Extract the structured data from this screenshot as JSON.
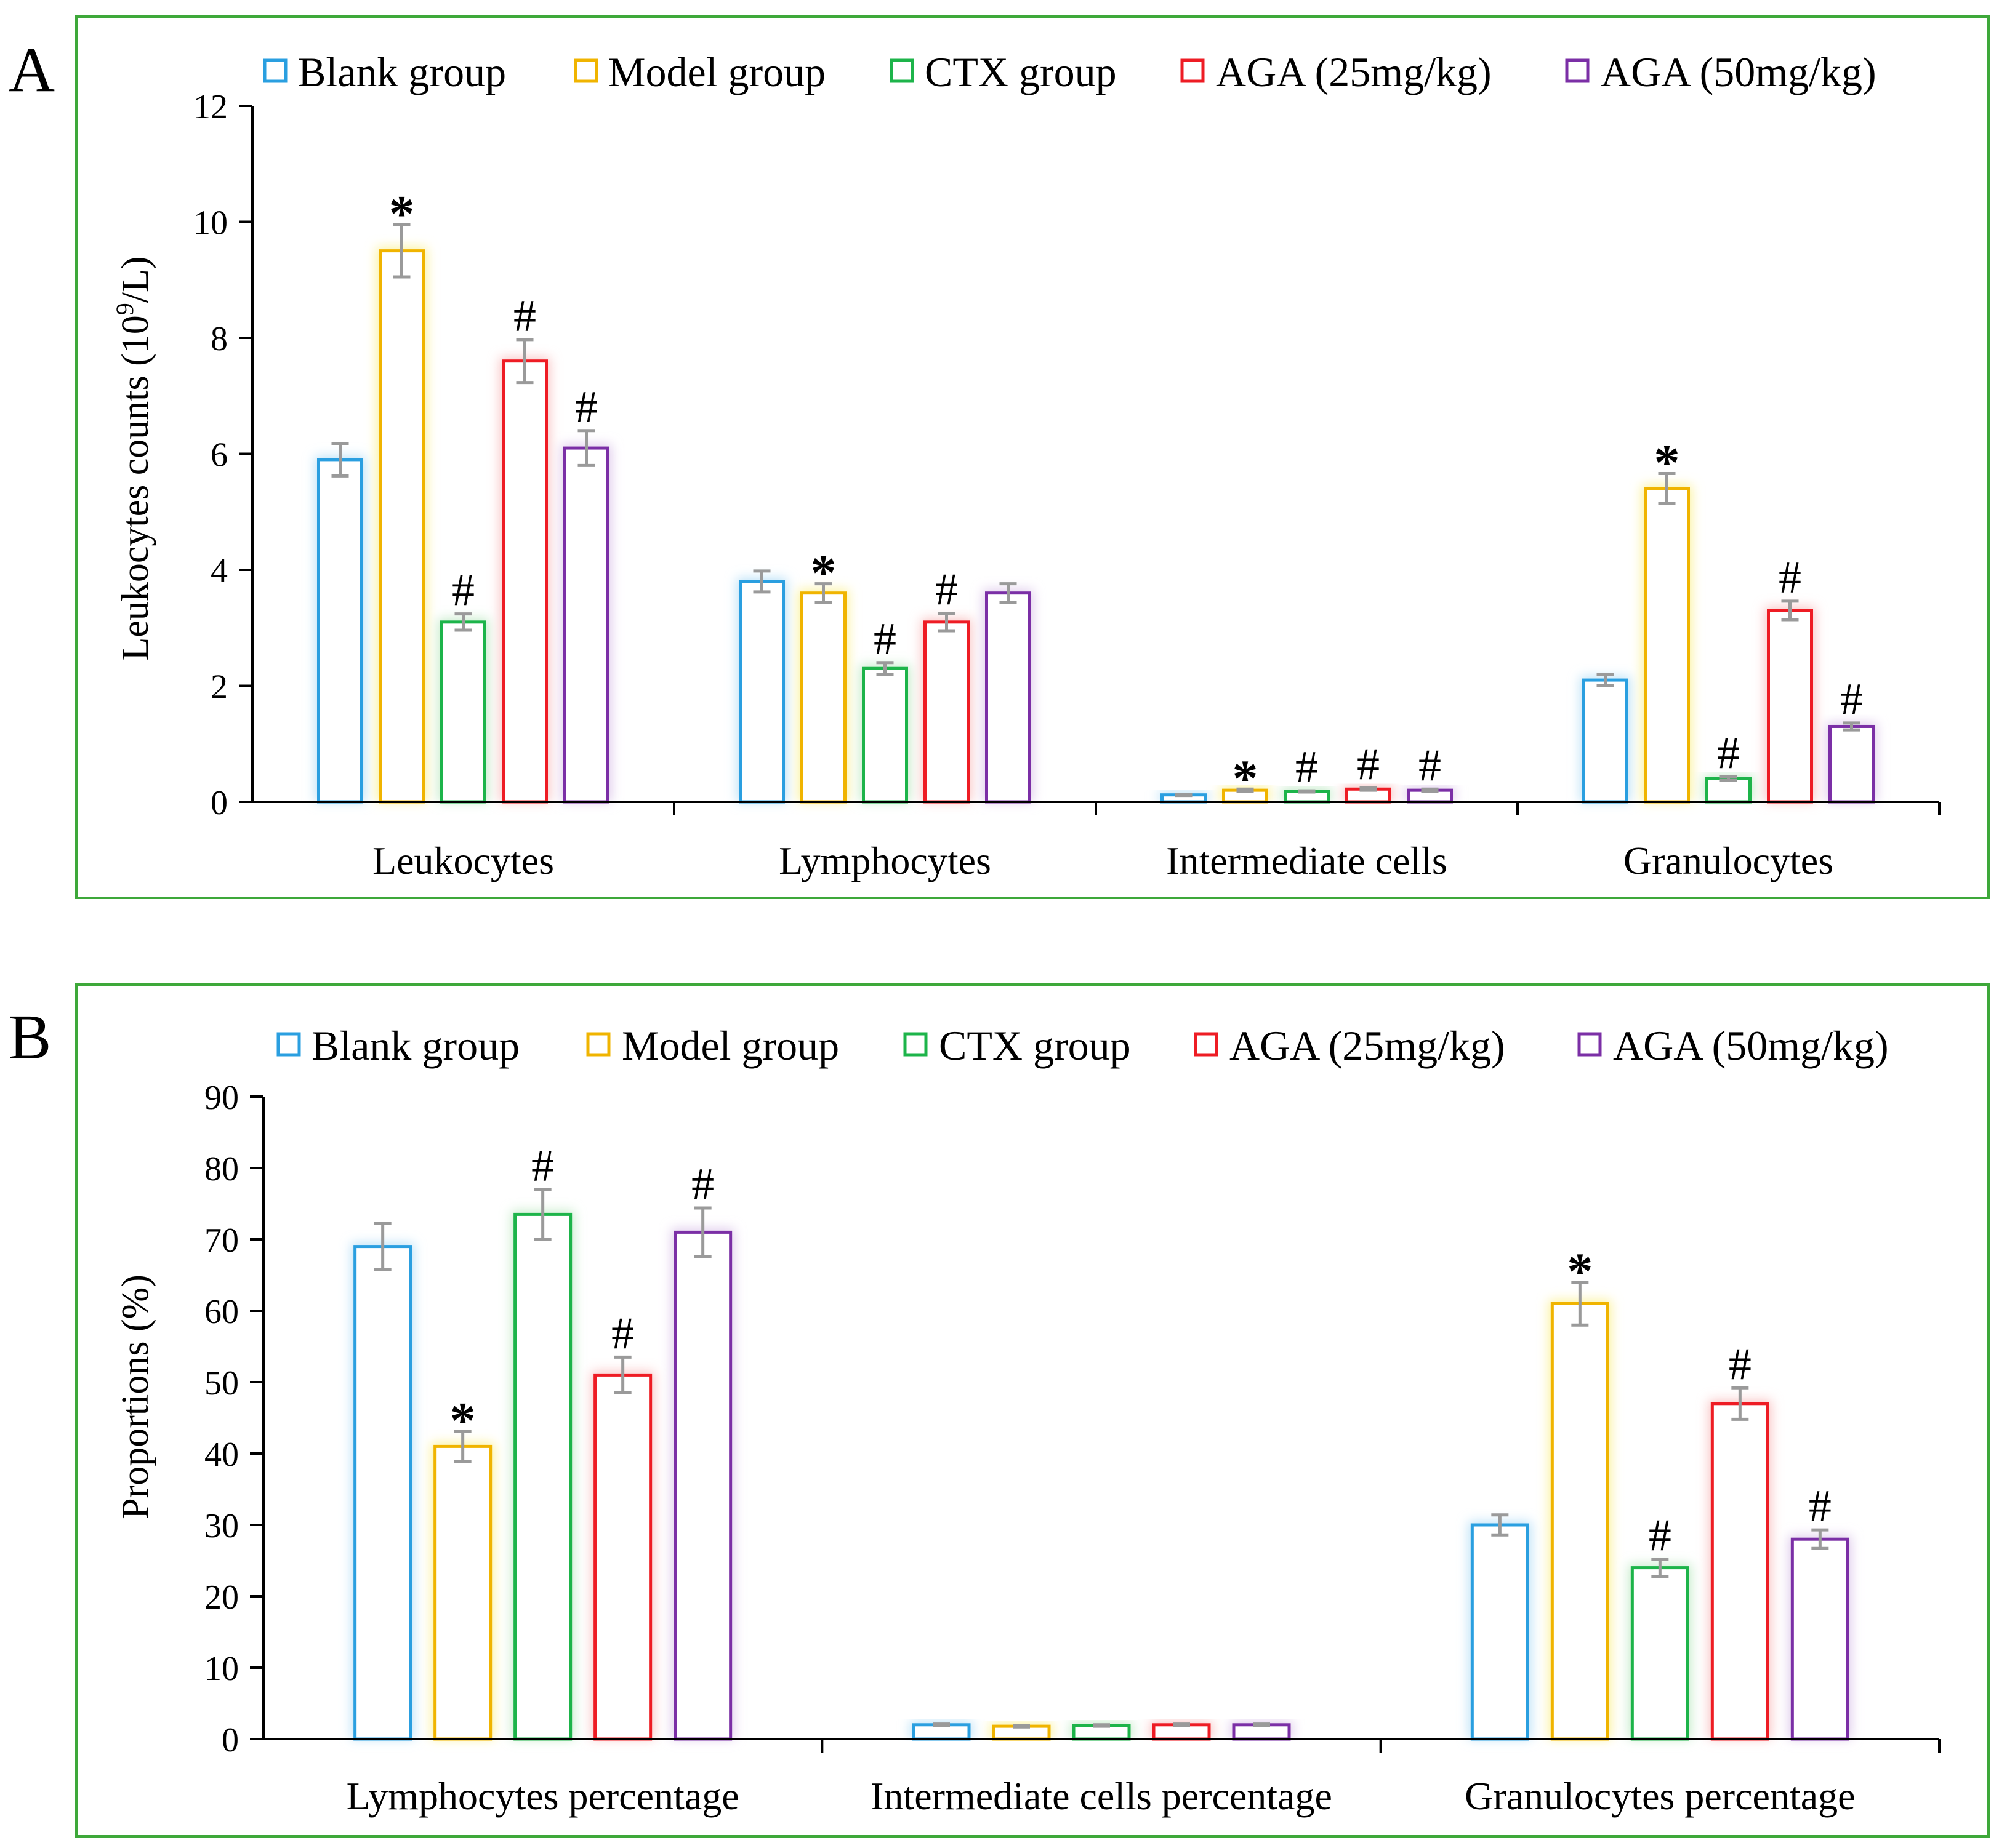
{
  "figure": {
    "background": "#ffffff",
    "frame_color": "#3ea83a",
    "axis_color": "#000000",
    "errorbar_color": "#9a9a9a"
  },
  "series_styles": [
    {
      "name": "Blank group",
      "color": "#2a9fe0",
      "glow": "#bfe3f8"
    },
    {
      "name": "Model group",
      "color": "#f0b400",
      "glow": "#fbf3a0"
    },
    {
      "name": "CTX group",
      "color": "#1db44a",
      "glow": "#c8eccc"
    },
    {
      "name": "AGA (25mg/kg)",
      "color": "#ee1c24",
      "glow": "#f9c6c6"
    },
    {
      "name": "AGA (50mg/kg)",
      "color": "#7b2fa6",
      "glow": "#e0cdec"
    }
  ],
  "chart_data": [
    {
      "panel": "A",
      "type": "bar",
      "ylabel_prefix": "Leukocytes counts (10",
      "ylabel_sup": "9",
      "ylabel_suffix": "/L)",
      "xlabel": "",
      "ylim": [
        0,
        12
      ],
      "yticks": [
        "0",
        "2",
        "4",
        "6",
        "8",
        "10",
        "12"
      ],
      "legend_position": "top",
      "categories": [
        "Leukocytes",
        "Lymphocytes",
        "Intermediate cells",
        "Granulocytes"
      ],
      "series": [
        {
          "name": "Blank group",
          "values": [
            5.9,
            3.8,
            0.12,
            2.1
          ],
          "errors": [
            0.28,
            0.18,
            0.01,
            0.1
          ],
          "markers": [
            "",
            "",
            "",
            ""
          ]
        },
        {
          "name": "Model group",
          "values": [
            9.5,
            3.6,
            0.2,
            5.4
          ],
          "errors": [
            0.45,
            0.16,
            0.02,
            0.26
          ],
          "markers": [
            "*",
            "*",
            "*",
            "*"
          ]
        },
        {
          "name": "CTX group",
          "values": [
            3.1,
            2.3,
            0.18,
            0.4
          ],
          "errors": [
            0.14,
            0.1,
            0.01,
            0.03
          ],
          "markers": [
            "#",
            "#",
            "#",
            "#"
          ]
        },
        {
          "name": "AGA (25mg/kg)",
          "values": [
            7.6,
            3.1,
            0.22,
            3.3
          ],
          "errors": [
            0.37,
            0.15,
            0.02,
            0.16
          ],
          "markers": [
            "#",
            "#",
            "#",
            "#"
          ]
        },
        {
          "name": "AGA (50mg/kg)",
          "values": [
            6.1,
            3.6,
            0.2,
            1.3
          ],
          "errors": [
            0.3,
            0.16,
            0.02,
            0.06
          ],
          "markers": [
            "#",
            "",
            "#",
            "#"
          ]
        }
      ]
    },
    {
      "panel": "B",
      "type": "bar",
      "ylabel_prefix": "Proportions (%)",
      "ylabel_sup": "",
      "ylabel_suffix": "",
      "xlabel": "",
      "ylim": [
        0,
        90
      ],
      "yticks": [
        "0",
        "10",
        "20",
        "30",
        "40",
        "50",
        "60",
        "70",
        "80",
        "90"
      ],
      "legend_position": "top",
      "categories": [
        "Lymphocytes percentage",
        "Intermediate cells percentage",
        "Granulocytes percentage"
      ],
      "series": [
        {
          "name": "Blank group",
          "values": [
            69.0,
            2.0,
            30.0
          ],
          "errors": [
            3.2,
            0.1,
            1.4
          ],
          "markers": [
            "",
            "",
            ""
          ]
        },
        {
          "name": "Model group",
          "values": [
            41.0,
            1.8,
            61.0
          ],
          "errors": [
            2.1,
            0.1,
            3.0
          ],
          "markers": [
            "*",
            "",
            "*"
          ]
        },
        {
          "name": "CTX group",
          "values": [
            73.5,
            1.9,
            24.0
          ],
          "errors": [
            3.5,
            0.1,
            1.2
          ],
          "markers": [
            "#",
            "",
            "#"
          ]
        },
        {
          "name": "AGA (25mg/kg)",
          "values": [
            51.0,
            2.0,
            47.0
          ],
          "errors": [
            2.5,
            0.1,
            2.2
          ],
          "markers": [
            "#",
            "",
            "#"
          ]
        },
        {
          "name": "AGA (50mg/kg)",
          "values": [
            71.0,
            2.0,
            28.0
          ],
          "errors": [
            3.4,
            0.1,
            1.3
          ],
          "markers": [
            "#",
            "",
            "#"
          ]
        }
      ]
    }
  ]
}
